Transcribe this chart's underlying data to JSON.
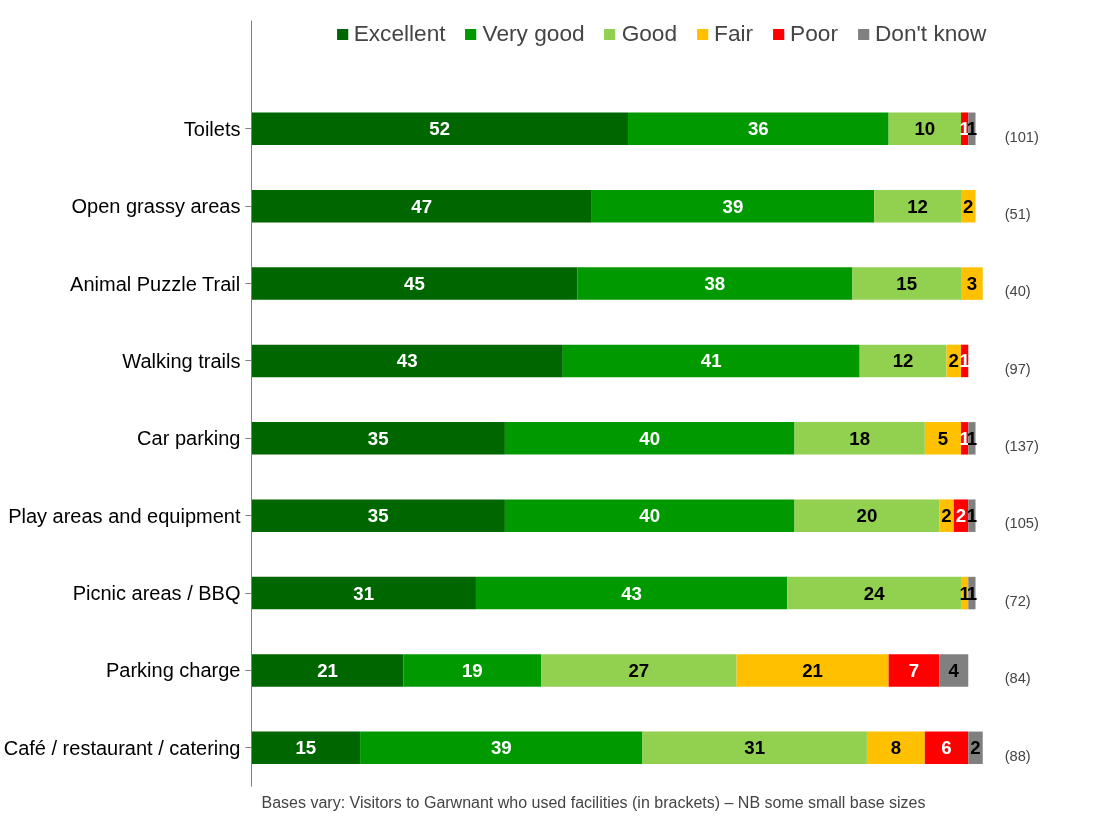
{
  "chart_data": {
    "type": "bar",
    "orientation": "horizontal",
    "stacked": true,
    "data_labels": true,
    "legend": "top",
    "grid": false,
    "categories": [
      "Toilets",
      "Open grassy areas",
      "Animal Puzzle Trail",
      "Walking trails",
      "Car parking",
      "Play areas and equipment",
      "Picnic areas / BBQ",
      "Parking charge",
      "Café / restaurant / catering"
    ],
    "series": [
      {
        "name": "Excellent",
        "color": "#006600",
        "values": [
          52,
          47,
          45,
          43,
          35,
          35,
          31,
          21,
          15
        ]
      },
      {
        "name": "Very good",
        "color": "#009900",
        "values": [
          36,
          39,
          38,
          41,
          40,
          40,
          43,
          19,
          39
        ]
      },
      {
        "name": "Good",
        "color": "#92d050",
        "values": [
          10,
          12,
          15,
          12,
          18,
          20,
          24,
          27,
          31
        ]
      },
      {
        "name": "Fair",
        "color": "#ffc000",
        "values": [
          null,
          2,
          3,
          2,
          5,
          2,
          1,
          21,
          8
        ]
      },
      {
        "name": "Poor",
        "color": "#ff0000",
        "values": [
          1,
          null,
          null,
          1,
          1,
          2,
          null,
          7,
          6
        ]
      },
      {
        "name": "Don't know",
        "color": "#808080",
        "values": [
          1,
          null,
          null,
          null,
          1,
          1,
          1,
          4,
          2
        ]
      }
    ],
    "annotations": [
      "(101)",
      "(51)",
      "(40)",
      "(97)",
      "(137)",
      "(105)",
      "(72)",
      "(84)",
      "(88)",
      "Bases vary: Visitors to Garwnant who  used facilities (in brackets) – NB some small base sizes"
    ]
  }
}
